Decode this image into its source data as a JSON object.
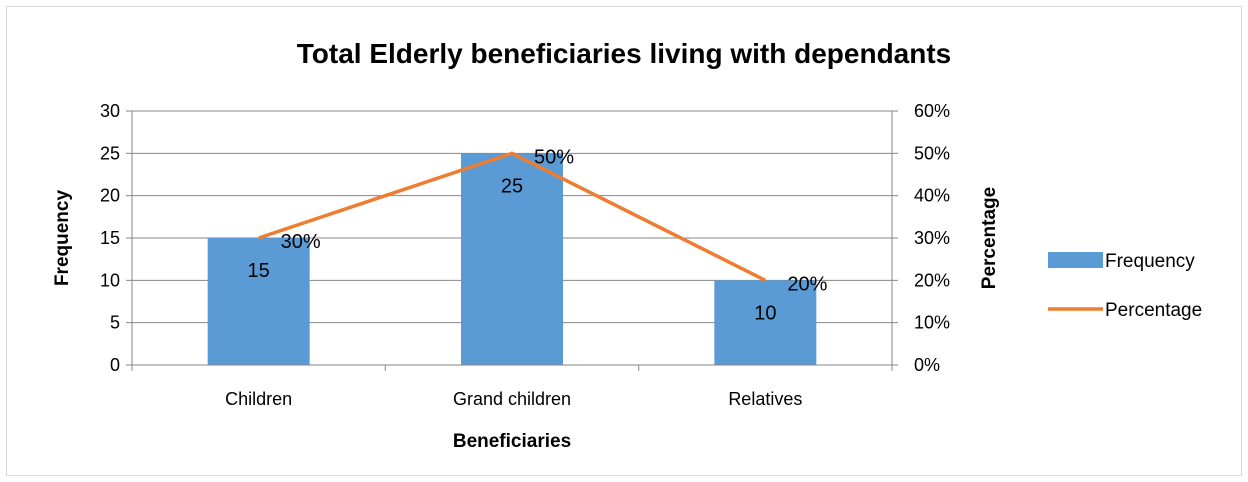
{
  "chart_data": {
    "type": "bar",
    "title": "Total Elderly beneficiaries living with dependants",
    "xlabel": "Beneficiaries",
    "ylabel": "Frequency",
    "y2label": "Percentage",
    "categories": [
      "Children",
      "Grand children",
      "Relatives"
    ],
    "series": [
      {
        "name": "Frequency",
        "type": "bar",
        "axis": "left",
        "values": [
          15,
          25,
          10
        ],
        "labels": [
          "15",
          "25",
          "10"
        ],
        "color": "#5b9bd5"
      },
      {
        "name": "Percentage",
        "type": "line",
        "axis": "right",
        "values": [
          30,
          50,
          20
        ],
        "labels": [
          "30%",
          "50%",
          "20%"
        ],
        "color": "#ed7d31"
      }
    ],
    "ylim": [
      0,
      30
    ],
    "y2lim": [
      0,
      60
    ],
    "yticks": [
      "0",
      "5",
      "10",
      "15",
      "20",
      "25",
      "30"
    ],
    "y2ticks": [
      "0%",
      "10%",
      "20%",
      "30%",
      "40%",
      "50%",
      "60%"
    ],
    "grid": true,
    "legend": "right"
  }
}
